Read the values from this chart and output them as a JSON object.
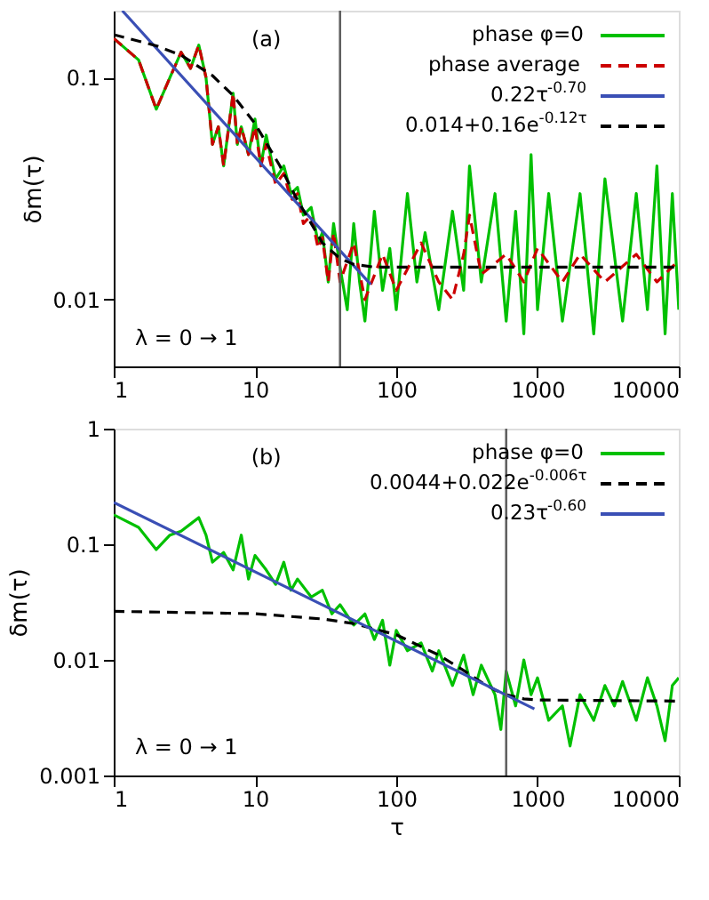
{
  "chart_data": [
    {
      "type": "line",
      "ylabel": "δm(τ)",
      "log": "xy",
      "legend": "top right",
      "annotations": [
        "(a)",
        "λ = 0 → 1"
      ],
      "xlim": [
        1,
        10000
      ],
      "ylim": [
        0.005,
        0.2
      ],
      "xticks": [
        1,
        10,
        100,
        1000,
        10000
      ],
      "yticks": [
        0.01,
        0.1
      ],
      "ref_lines": [
        {
          "axis": "x",
          "value": 40,
          "color": "#606060"
        }
      ],
      "series": [
        {
          "name": "phase φ=0",
          "color": "#00c000",
          "line_style": "solid",
          "x": [
            1,
            1.5,
            2,
            2.5,
            3,
            3.5,
            4,
            4.5,
            5,
            5.5,
            6,
            7,
            7.5,
            8,
            9,
            10,
            11,
            12,
            14,
            16,
            18,
            20,
            22,
            25,
            28,
            30,
            33,
            36,
            40,
            45,
            50,
            55,
            60,
            70,
            80,
            90,
            100,
            120,
            140,
            160,
            200,
            250,
            300,
            330,
            400,
            500,
            600,
            700,
            800,
            900,
            1000,
            1200,
            1500,
            2000,
            2500,
            3000,
            4000,
            5000,
            6000,
            7000,
            8000,
            9000,
            10000
          ],
          "values": [
            0.15,
            0.12,
            0.072,
            0.1,
            0.13,
            0.11,
            0.14,
            0.1,
            0.05,
            0.06,
            0.04,
            0.085,
            0.05,
            0.06,
            0.045,
            0.065,
            0.04,
            0.055,
            0.035,
            0.04,
            0.03,
            0.032,
            0.024,
            0.026,
            0.018,
            0.02,
            0.012,
            0.022,
            0.014,
            0.009,
            0.022,
            0.012,
            0.008,
            0.025,
            0.011,
            0.017,
            0.009,
            0.03,
            0.012,
            0.02,
            0.009,
            0.025,
            0.011,
            0.04,
            0.012,
            0.03,
            0.008,
            0.025,
            0.007,
            0.045,
            0.009,
            0.03,
            0.008,
            0.03,
            0.007,
            0.035,
            0.008,
            0.03,
            0.009,
            0.04,
            0.007,
            0.03,
            0.009
          ]
        },
        {
          "name": "phase average",
          "color": "#cc0000",
          "line_style": "dashed",
          "x": [
            1,
            1.5,
            2,
            2.5,
            3,
            3.5,
            4,
            4.5,
            5,
            5.5,
            6,
            7,
            7.5,
            8,
            9,
            10,
            11,
            12,
            14,
            16,
            18,
            20,
            22,
            25,
            28,
            30,
            33,
            36,
            40,
            50,
            60,
            80,
            100,
            150,
            200,
            250,
            300,
            330,
            400,
            600,
            800,
            1000,
            1500,
            2000,
            3000,
            5000,
            7000,
            10000
          ],
          "values": [
            0.15,
            0.12,
            0.072,
            0.1,
            0.13,
            0.11,
            0.14,
            0.1,
            0.05,
            0.06,
            0.04,
            0.085,
            0.05,
            0.06,
            0.045,
            0.06,
            0.04,
            0.05,
            0.033,
            0.037,
            0.028,
            0.03,
            0.022,
            0.024,
            0.017,
            0.019,
            0.012,
            0.02,
            0.012,
            0.018,
            0.01,
            0.016,
            0.011,
            0.018,
            0.012,
            0.01,
            0.016,
            0.024,
            0.013,
            0.016,
            0.012,
            0.017,
            0.012,
            0.016,
            0.012,
            0.016,
            0.012,
            0.015
          ]
        },
        {
          "name": "0.22τ$^{-0.70}$",
          "color": "#3a4fb5",
          "line_style": "solid",
          "x": [
            1.15,
            66
          ],
          "values": [
            0.2,
            0.0117
          ]
        },
        {
          "name": "0.014+0.16e$^{-0.12τ}$",
          "color": "#000000",
          "line_style": "dashed",
          "x": [
            1,
            2,
            3,
            5,
            7,
            10,
            15,
            20,
            25,
            30,
            40,
            50,
            70,
            10000
          ],
          "values": [
            0.156,
            0.139,
            0.126,
            0.102,
            0.083,
            0.062,
            0.04,
            0.028,
            0.022,
            0.018,
            0.0153,
            0.0144,
            0.014,
            0.014
          ]
        }
      ]
    },
    {
      "type": "line",
      "xlabel": "τ",
      "ylabel": "δm(τ)",
      "log": "xy",
      "legend": "top right",
      "annotations": [
        "(b)",
        "λ = 0 → 1"
      ],
      "xlim": [
        1,
        10000
      ],
      "ylim": [
        0.001,
        1
      ],
      "xticks": [
        1,
        10,
        100,
        1000,
        10000
      ],
      "yticks": [
        0.001,
        0.01,
        0.1,
        1
      ],
      "ref_lines": [
        {
          "axis": "x",
          "value": 600,
          "color": "#606060"
        }
      ],
      "series": [
        {
          "name": "phase φ=0",
          "color": "#00c000",
          "line_style": "solid",
          "x": [
            1,
            1.5,
            2,
            2.5,
            3,
            3.5,
            4,
            4.5,
            5,
            6,
            7,
            8,
            9,
            10,
            12,
            14,
            16,
            18,
            20,
            25,
            30,
            35,
            40,
            50,
            60,
            70,
            80,
            90,
            100,
            120,
            150,
            180,
            200,
            250,
            300,
            350,
            400,
            500,
            550,
            600,
            700,
            800,
            900,
            1000,
            1200,
            1500,
            1700,
            2000,
            2500,
            3000,
            3500,
            4000,
            5000,
            6000,
            7000,
            8000,
            9000,
            10000
          ],
          "values": [
            0.18,
            0.14,
            0.09,
            0.12,
            0.13,
            0.15,
            0.17,
            0.12,
            0.07,
            0.085,
            0.06,
            0.12,
            0.05,
            0.08,
            0.06,
            0.045,
            0.07,
            0.04,
            0.05,
            0.035,
            0.04,
            0.025,
            0.03,
            0.02,
            0.025,
            0.015,
            0.022,
            0.009,
            0.018,
            0.012,
            0.014,
            0.008,
            0.012,
            0.006,
            0.011,
            0.005,
            0.009,
            0.005,
            0.0025,
            0.008,
            0.004,
            0.01,
            0.005,
            0.007,
            0.003,
            0.004,
            0.0018,
            0.005,
            0.003,
            0.006,
            0.004,
            0.0065,
            0.003,
            0.007,
            0.004,
            0.002,
            0.006,
            0.007
          ]
        },
        {
          "name": "0.0044+0.022e$^{-0.006τ}$",
          "color": "#000000",
          "line_style": "dashed",
          "x": [
            1,
            10,
            30,
            50,
            100,
            200,
            300,
            400,
            500,
            600,
            800,
            1000,
            10000
          ],
          "values": [
            0.0263,
            0.0251,
            0.0226,
            0.0206,
            0.0165,
            0.011,
            0.0081,
            0.0064,
            0.0055,
            0.005,
            0.0046,
            0.0045,
            0.0044
          ]
        },
        {
          "name": "0.23τ$^{-0.60}$",
          "color": "#3a4fb5",
          "line_style": "solid",
          "x": [
            1,
            950
          ],
          "values": [
            0.23,
            0.00377
          ]
        }
      ]
    }
  ]
}
